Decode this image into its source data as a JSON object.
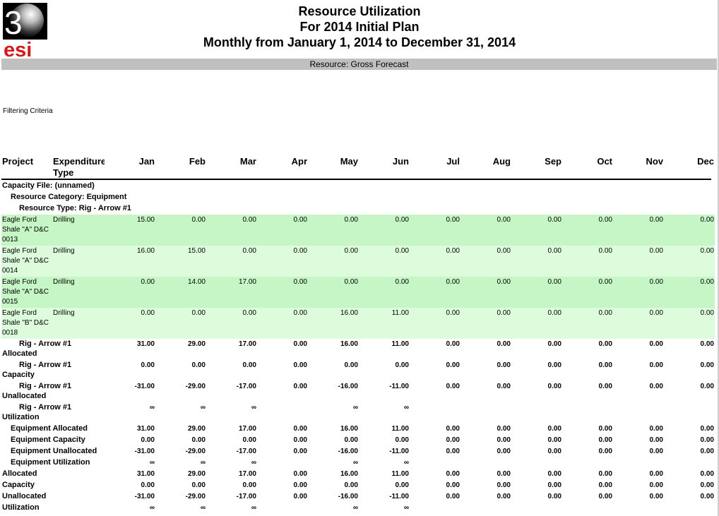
{
  "logo": {
    "digit": "3",
    "text": "esi"
  },
  "report": {
    "title": "Resource Utilization",
    "subtitle": "For 2014 Initial Plan",
    "period": "Monthly from January 1, 2014 to December 31, 2014",
    "resource": "Resource: Gross Forecast",
    "filtering": "Filtering Criteria"
  },
  "columns": {
    "project": "Project",
    "expenditure_line1": "Expenditure",
    "expenditure_line2": "Type",
    "months": [
      "Jan",
      "Feb",
      "Mar",
      "Apr",
      "May",
      "Jun",
      "Jul",
      "Aug",
      "Sep",
      "Oct",
      "Nov",
      "Dec"
    ]
  },
  "groups": {
    "capacity_file": "Capacity File: (unnamed)",
    "resource_category": "Resource Category: Equipment",
    "resource_type": "Resource Type: Rig - Arrow #1"
  },
  "detail_rows": [
    {
      "project": [
        "Eagle Ford",
        "Shale \"A\" D&C",
        "0013"
      ],
      "type": "Drilling",
      "values": [
        "15.00",
        "0.00",
        "0.00",
        "0.00",
        "0.00",
        "0.00",
        "0.00",
        "0.00",
        "0.00",
        "0.00",
        "0.00",
        "0.00"
      ]
    },
    {
      "project": [
        "Eagle Ford",
        "Shale \"A\" D&C",
        "0014"
      ],
      "type": "Drilling",
      "values": [
        "16.00",
        "15.00",
        "0.00",
        "0.00",
        "0.00",
        "0.00",
        "0.00",
        "0.00",
        "0.00",
        "0.00",
        "0.00",
        "0.00"
      ]
    },
    {
      "project": [
        "Eagle Ford",
        "Shale \"A\" D&C",
        "0015"
      ],
      "type": "Drilling",
      "values": [
        "0.00",
        "14.00",
        "17.00",
        "0.00",
        "0.00",
        "0.00",
        "0.00",
        "0.00",
        "0.00",
        "0.00",
        "0.00",
        "0.00"
      ]
    },
    {
      "project": [
        "Eagle Ford",
        "Shale \"B\" D&C",
        "0018"
      ],
      "type": "Drilling",
      "values": [
        "0.00",
        "0.00",
        "0.00",
        "0.00",
        "16.00",
        "11.00",
        "0.00",
        "0.00",
        "0.00",
        "0.00",
        "0.00",
        "0.00"
      ]
    }
  ],
  "type_totals": [
    {
      "line1": "Rig - Arrow #1",
      "line2": "Allocated",
      "values": [
        "31.00",
        "29.00",
        "17.00",
        "0.00",
        "16.00",
        "11.00",
        "0.00",
        "0.00",
        "0.00",
        "0.00",
        "0.00",
        "0.00"
      ]
    },
    {
      "line1": "Rig - Arrow #1",
      "line2": "Capacity",
      "values": [
        "0.00",
        "0.00",
        "0.00",
        "0.00",
        "0.00",
        "0.00",
        "0.00",
        "0.00",
        "0.00",
        "0.00",
        "0.00",
        "0.00"
      ]
    },
    {
      "line1": "Rig - Arrow #1",
      "line2": "Unallocated",
      "values": [
        "-31.00",
        "-29.00",
        "-17.00",
        "0.00",
        "-16.00",
        "-11.00",
        "0.00",
        "0.00",
        "0.00",
        "0.00",
        "0.00",
        "0.00"
      ]
    },
    {
      "line1": "Rig - Arrow #1",
      "line2": "Utilization",
      "values": [
        "∞",
        "∞",
        "∞",
        "",
        "∞",
        "∞",
        "",
        "",
        "",
        "",
        "",
        ""
      ]
    }
  ],
  "category_totals": [
    {
      "label": "Equipment Allocated",
      "values": [
        "31.00",
        "29.00",
        "17.00",
        "0.00",
        "16.00",
        "11.00",
        "0.00",
        "0.00",
        "0.00",
        "0.00",
        "0.00",
        "0.00"
      ]
    },
    {
      "label": "Equipment Capacity",
      "values": [
        "0.00",
        "0.00",
        "0.00",
        "0.00",
        "0.00",
        "0.00",
        "0.00",
        "0.00",
        "0.00",
        "0.00",
        "0.00",
        "0.00"
      ]
    },
    {
      "label": "Equipment Unallocated",
      "values": [
        "-31.00",
        "-29.00",
        "-17.00",
        "0.00",
        "-16.00",
        "-11.00",
        "0.00",
        "0.00",
        "0.00",
        "0.00",
        "0.00",
        "0.00"
      ]
    },
    {
      "label": "Equipment Utilization",
      "values": [
        "∞",
        "∞",
        "∞",
        "",
        "∞",
        "∞",
        "",
        "",
        "",
        "",
        "",
        ""
      ]
    }
  ],
  "file_totals": [
    {
      "label": "Allocated",
      "values": [
        "31.00",
        "29.00",
        "17.00",
        "0.00",
        "16.00",
        "11.00",
        "0.00",
        "0.00",
        "0.00",
        "0.00",
        "0.00",
        "0.00"
      ]
    },
    {
      "label": "Capacity",
      "values": [
        "0.00",
        "0.00",
        "0.00",
        "0.00",
        "0.00",
        "0.00",
        "0.00",
        "0.00",
        "0.00",
        "0.00",
        "0.00",
        "0.00"
      ]
    },
    {
      "label": "Unallocated",
      "values": [
        "-31.00",
        "-29.00",
        "-17.00",
        "0.00",
        "-16.00",
        "-11.00",
        "0.00",
        "0.00",
        "0.00",
        "0.00",
        "0.00",
        "0.00"
      ]
    },
    {
      "label": "Utilization",
      "values": [
        "∞",
        "∞",
        "∞",
        "",
        "∞",
        "∞",
        "",
        "",
        "",
        "",
        "",
        ""
      ]
    }
  ]
}
